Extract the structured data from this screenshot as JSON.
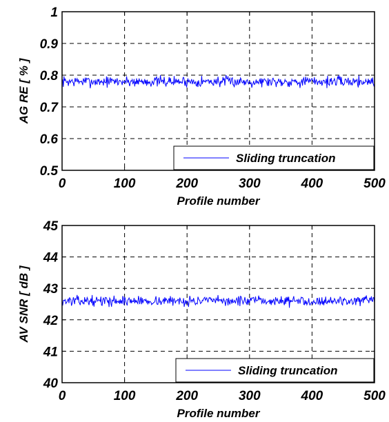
{
  "chart_data": [
    {
      "type": "line",
      "xlabel": "Profile number",
      "ylabel": "AG RE [ % ]",
      "xlim": [
        0,
        500
      ],
      "ylim": [
        0.5,
        1
      ],
      "xticks": [
        0,
        100,
        200,
        300,
        400,
        500
      ],
      "xtick_labels": [
        "0",
        "100",
        "200",
        "300",
        "400",
        "500"
      ],
      "yticks": [
        0.5,
        0.6,
        0.7,
        0.8,
        0.9,
        1
      ],
      "ytick_labels": [
        "0.5",
        "0.6",
        "0.7",
        "0.8",
        "0.9",
        "1"
      ],
      "grid": true,
      "legend_position": "bottom-right",
      "series": [
        {
          "name": "Sliding truncation",
          "color": "#0000ff",
          "noise": {
            "x_start": 0,
            "x_end": 500,
            "points": 500,
            "mean": 0.78,
            "range": [
              0.755,
              0.805
            ],
            "seed": 7
          }
        }
      ]
    },
    {
      "type": "line",
      "xlabel": "Profile number",
      "ylabel": "AV SNR [ dB ]",
      "xlim": [
        0,
        500
      ],
      "ylim": [
        40,
        45
      ],
      "xticks": [
        0,
        100,
        200,
        300,
        400,
        500
      ],
      "xtick_labels": [
        "0",
        "100",
        "200",
        "300",
        "400",
        "500"
      ],
      "yticks": [
        40,
        41,
        42,
        43,
        44,
        45
      ],
      "ytick_labels": [
        "40",
        "41",
        "42",
        "43",
        "44",
        "45"
      ],
      "grid": true,
      "legend_position": "bottom-right",
      "series": [
        {
          "name": "Sliding truncation",
          "color": "#0000ff",
          "noise": {
            "x_start": 0,
            "x_end": 500,
            "points": 500,
            "mean": 42.6,
            "range": [
              42.35,
              42.8
            ],
            "seed": 13
          }
        }
      ]
    }
  ]
}
